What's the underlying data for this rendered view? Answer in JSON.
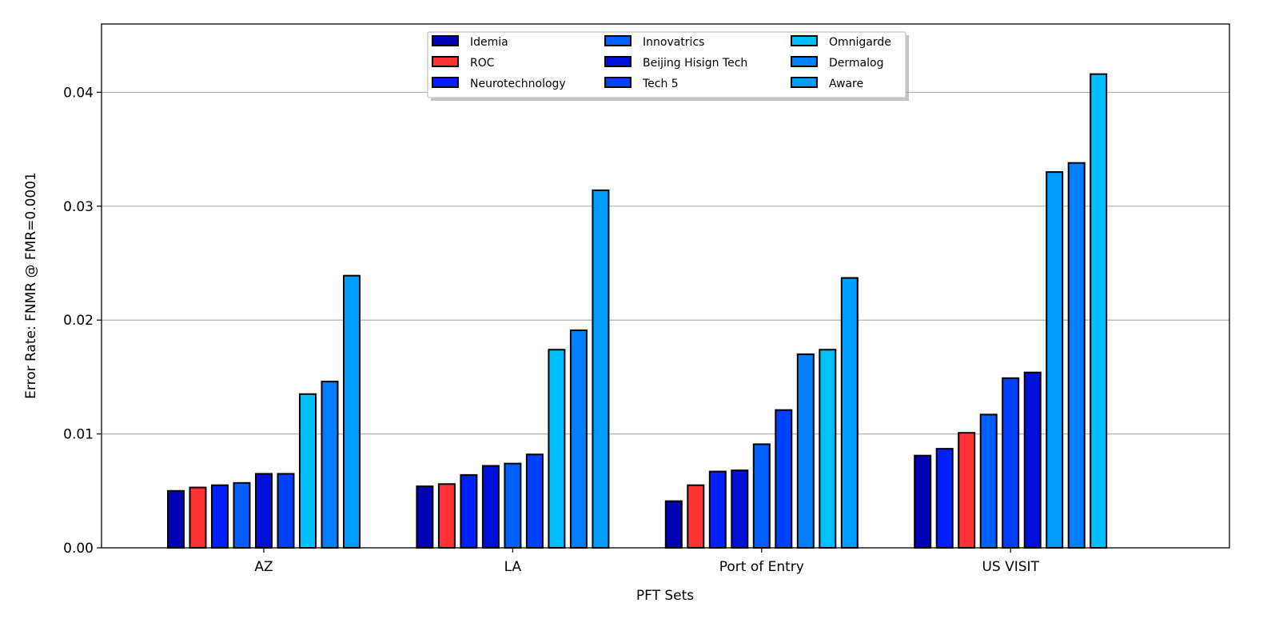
{
  "chart_data": {
    "type": "bar",
    "title": "",
    "xlabel": "PFT Sets",
    "ylabel": "Error Rate: FNMR @ FMR=0.0001",
    "ylim": [
      0,
      0.046
    ],
    "yticks": [
      "0.00",
      "0.01",
      "0.02",
      "0.03",
      "0.04"
    ],
    "ytick_values": [
      0,
      0.01,
      0.02,
      0.03,
      0.04
    ],
    "grid": "horizontal",
    "legend_position": "top-center",
    "categories": [
      "AZ",
      "LA",
      "Port of Entry",
      "US VISIT"
    ],
    "vendors": [
      {
        "name": "Idemia",
        "color": "#0000b4"
      },
      {
        "name": "ROC",
        "color": "#ff3333"
      },
      {
        "name": "Neurotechnology",
        "color": "#0020ff"
      },
      {
        "name": "Innovatrics",
        "color": "#0060ff"
      },
      {
        "name": "Beijing Hisign Tech",
        "color": "#0010d8"
      },
      {
        "name": "Tech 5",
        "color": "#0040ff"
      },
      {
        "name": "Omnigarde",
        "color": "#00bfff"
      },
      {
        "name": "Dermalog",
        "color": "#0080ff"
      },
      {
        "name": "Aware",
        "color": "#009cff"
      }
    ],
    "groups": [
      {
        "category": "AZ",
        "bars": [
          {
            "vendor": "Idemia",
            "value": 0.005
          },
          {
            "vendor": "ROC",
            "value": 0.0053
          },
          {
            "vendor": "Neurotechnology",
            "value": 0.0055
          },
          {
            "vendor": "Innovatrics",
            "value": 0.0057
          },
          {
            "vendor": "Beijing Hisign Tech",
            "value": 0.0065
          },
          {
            "vendor": "Tech 5",
            "value": 0.0065
          },
          {
            "vendor": "Omnigarde",
            "value": 0.0135
          },
          {
            "vendor": "Dermalog",
            "value": 0.0146
          },
          {
            "vendor": "Aware",
            "value": 0.0239
          }
        ]
      },
      {
        "category": "LA",
        "bars": [
          {
            "vendor": "Idemia",
            "value": 0.0054
          },
          {
            "vendor": "ROC",
            "value": 0.0056
          },
          {
            "vendor": "Neurotechnology",
            "value": 0.0064
          },
          {
            "vendor": "Beijing Hisign Tech",
            "value": 0.0072
          },
          {
            "vendor": "Innovatrics",
            "value": 0.0074
          },
          {
            "vendor": "Tech 5",
            "value": 0.0082
          },
          {
            "vendor": "Omnigarde",
            "value": 0.0174
          },
          {
            "vendor": "Dermalog",
            "value": 0.0191
          },
          {
            "vendor": "Aware",
            "value": 0.0314
          }
        ]
      },
      {
        "category": "Port of Entry",
        "bars": [
          {
            "vendor": "Idemia",
            "value": 0.0041
          },
          {
            "vendor": "ROC",
            "value": 0.0055
          },
          {
            "vendor": "Neurotechnology",
            "value": 0.0067
          },
          {
            "vendor": "Beijing Hisign Tech",
            "value": 0.0068
          },
          {
            "vendor": "Innovatrics",
            "value": 0.0091
          },
          {
            "vendor": "Tech 5",
            "value": 0.0121
          },
          {
            "vendor": "Dermalog",
            "value": 0.017
          },
          {
            "vendor": "Omnigarde",
            "value": 0.0174
          },
          {
            "vendor": "Aware",
            "value": 0.0237
          }
        ]
      },
      {
        "category": "US VISIT",
        "bars": [
          {
            "vendor": "Idemia",
            "value": 0.0081
          },
          {
            "vendor": "Neurotechnology",
            "value": 0.0087
          },
          {
            "vendor": "ROC",
            "value": 0.0101
          },
          {
            "vendor": "Innovatrics",
            "value": 0.0117
          },
          {
            "vendor": "Tech 5",
            "value": 0.0149
          },
          {
            "vendor": "Beijing Hisign Tech",
            "value": 0.0154
          },
          {
            "vendor": "Aware",
            "value": 0.033
          },
          {
            "vendor": "Dermalog",
            "value": 0.0338
          },
          {
            "vendor": "Omnigarde",
            "value": 0.0416
          }
        ]
      }
    ]
  }
}
